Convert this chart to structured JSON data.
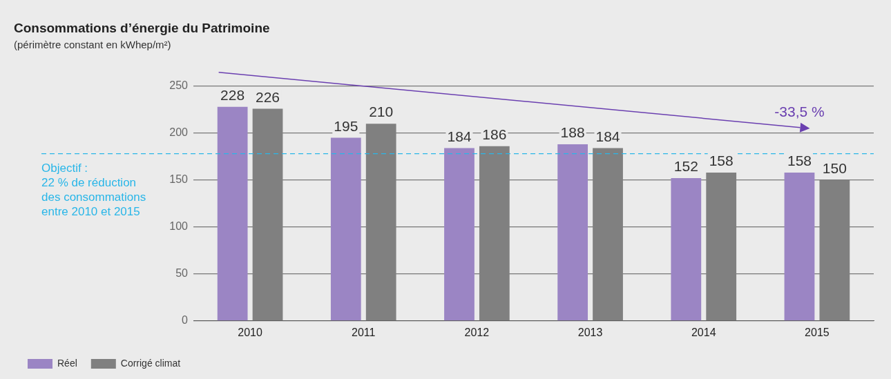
{
  "chart_data": {
    "type": "bar",
    "title": "Consommations d’énergie du Patrimoine",
    "subtitle": "(périmètre constant en kWhep/m²)",
    "categories": [
      "2010",
      "2011",
      "2012",
      "2013",
      "2014",
      "2015"
    ],
    "series": [
      {
        "name": "Réel",
        "color": "#9b85c4",
        "values": [
          228,
          195,
          184,
          188,
          152,
          158
        ]
      },
      {
        "name": "Corrigé climat",
        "color": "#808080",
        "values": [
          226,
          210,
          186,
          184,
          158,
          150
        ]
      }
    ],
    "ylim": [
      0,
      250
    ],
    "yticks": [
      0,
      50,
      100,
      150,
      200,
      250
    ],
    "grid": "y",
    "legend": "bottom left",
    "data_labels": true,
    "ref_lines": [
      {
        "axis": "y",
        "value": 178,
        "color": "#29b6e8",
        "line_style": "dashed"
      }
    ],
    "annotations": [
      "Objectif :\n22 % de réduction\ndes consommations\nentre 2010 et 2015",
      "-33,5 %"
    ]
  }
}
